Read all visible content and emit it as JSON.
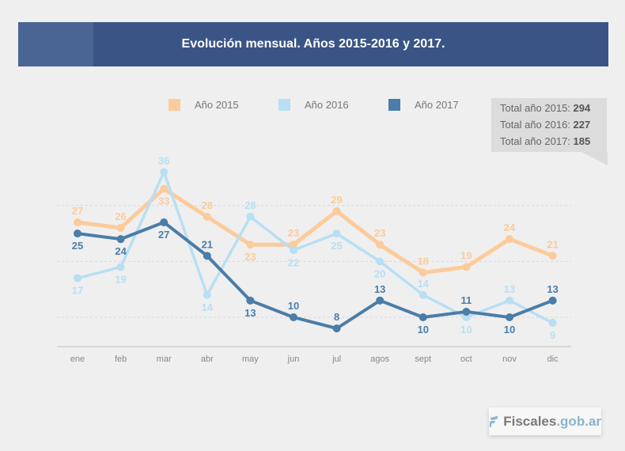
{
  "header": {
    "title": "Evolución mensual. Años 2015-2016 y 2017."
  },
  "colors": {
    "s2015": "#fccb9b",
    "s2016": "#b8dff3",
    "s2017": "#4a7da8",
    "banner": "#3a5585"
  },
  "totals": [
    {
      "label": "Total año 2015:",
      "value": "294"
    },
    {
      "label": "Total año 2016:",
      "value": "227"
    },
    {
      "label": "Total año 2017:",
      "value": "185"
    }
  ],
  "logo": {
    "name": "Fiscales",
    "domain": ".gob.ar",
    "icon": "fiscales-logo-icon"
  },
  "chart_data": {
    "type": "line",
    "title": "Evolución mensual. Años 2015-2016 y 2017.",
    "categories": [
      "ene",
      "feb",
      "mar",
      "abr",
      "may",
      "jun",
      "jul",
      "agos",
      "sept",
      "oct",
      "nov",
      "dic"
    ],
    "series": [
      {
        "name": "Año 2015",
        "color": "#fccb9b",
        "values": [
          27,
          26,
          33,
          28,
          23,
          23,
          29,
          23,
          18,
          19,
          24,
          21
        ]
      },
      {
        "name": "Año 2016",
        "color": "#b8dff3",
        "values": [
          17,
          19,
          36,
          14,
          28,
          22,
          25,
          20,
          14,
          10,
          13,
          9
        ]
      },
      {
        "name": "Año 2017",
        "color": "#4a7da8",
        "values": [
          25,
          24,
          27,
          21,
          13,
          10,
          8,
          13,
          10,
          11,
          10,
          13
        ]
      }
    ],
    "gridlines": [
      10,
      20,
      30
    ],
    "ylim": [
      0,
      40
    ],
    "grid": true,
    "legend": "top",
    "xlabel": "",
    "ylabel": ""
  }
}
